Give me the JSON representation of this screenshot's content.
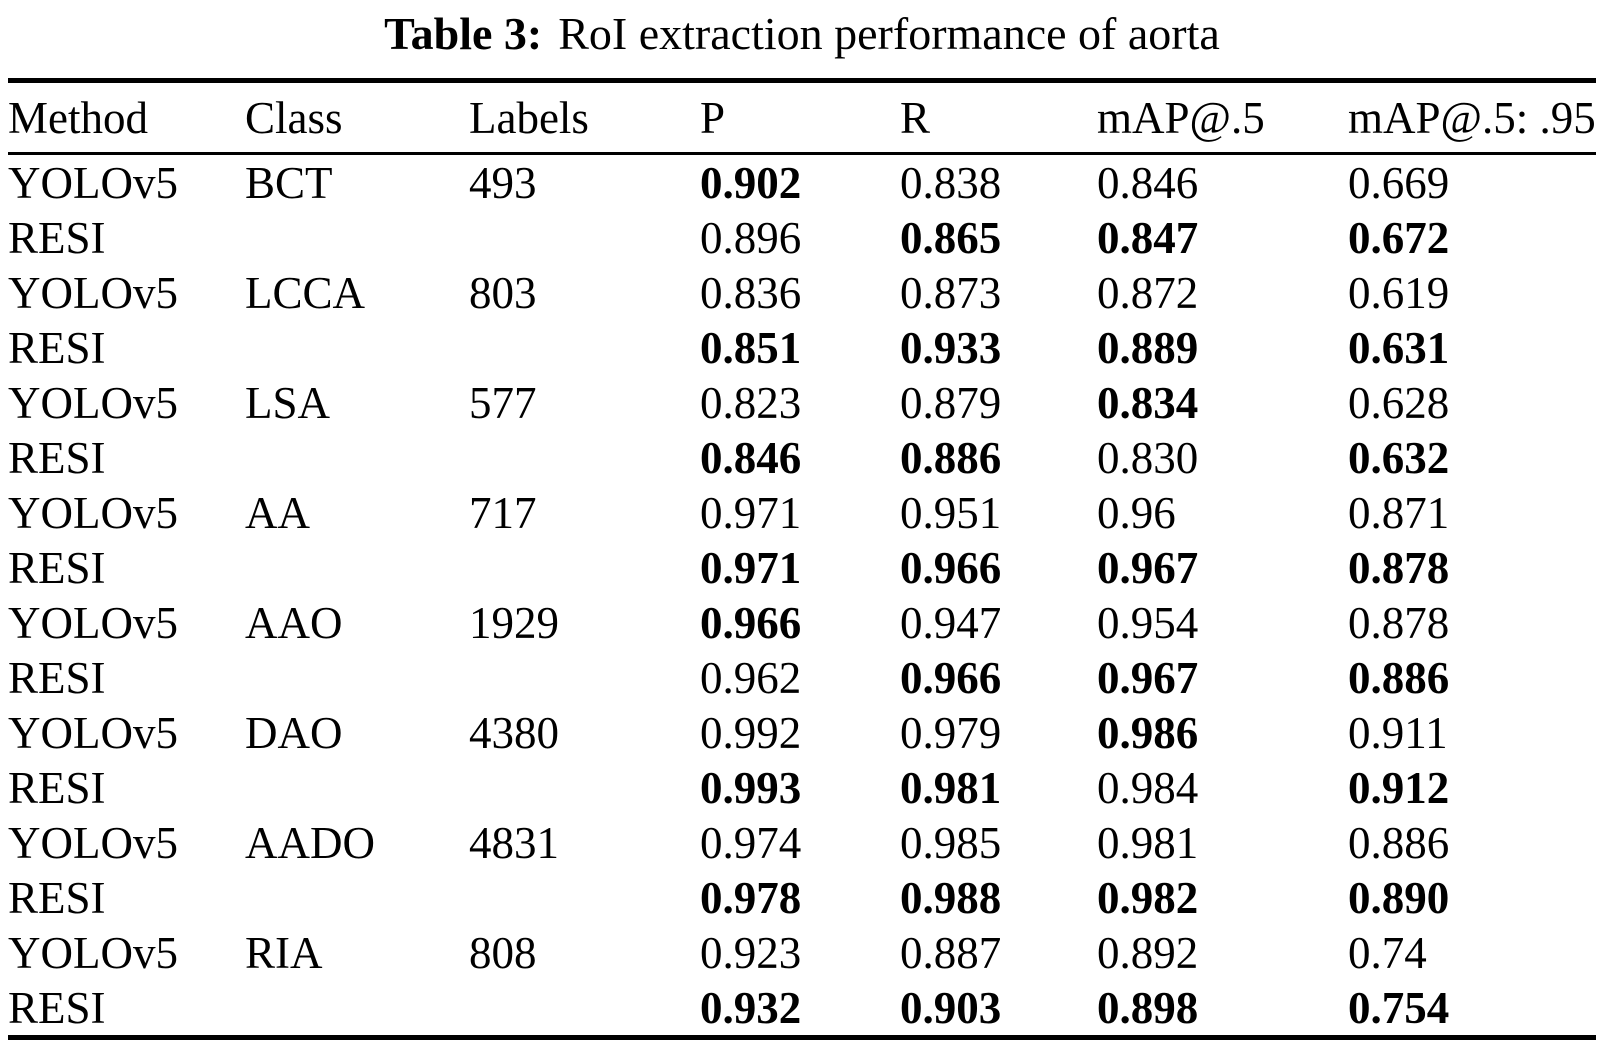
{
  "colors": {
    "text": "#000000",
    "background": "#ffffff",
    "rule": "#000000"
  },
  "caption": {
    "label": "Table 3:",
    "text": "RoI extraction performance of aorta"
  },
  "table": {
    "columns": [
      "Method",
      "Class",
      "Labels",
      "P",
      "R",
      "mAP@.5",
      "mAP@.5: .95"
    ],
    "column_keys": [
      "method",
      "class",
      "labels",
      "p",
      "r",
      "map50",
      "map50-95"
    ],
    "rows": [
      [
        {
          "v": "YOLOv5"
        },
        {
          "v": "BCT"
        },
        {
          "v": "493"
        },
        {
          "v": "0.902",
          "bold": true
        },
        {
          "v": "0.838"
        },
        {
          "v": "0.846"
        },
        {
          "v": "0.669"
        }
      ],
      [
        {
          "v": "RESI"
        },
        {
          "v": ""
        },
        {
          "v": ""
        },
        {
          "v": "0.896"
        },
        {
          "v": "0.865",
          "bold": true
        },
        {
          "v": "0.847",
          "bold": true
        },
        {
          "v": "0.672",
          "bold": true
        }
      ],
      [
        {
          "v": "YOLOv5"
        },
        {
          "v": "LCCA"
        },
        {
          "v": "803"
        },
        {
          "v": "0.836"
        },
        {
          "v": "0.873"
        },
        {
          "v": "0.872"
        },
        {
          "v": "0.619"
        }
      ],
      [
        {
          "v": "RESI"
        },
        {
          "v": ""
        },
        {
          "v": ""
        },
        {
          "v": "0.851",
          "bold": true
        },
        {
          "v": "0.933",
          "bold": true
        },
        {
          "v": "0.889",
          "bold": true
        },
        {
          "v": "0.631",
          "bold": true
        }
      ],
      [
        {
          "v": "YOLOv5"
        },
        {
          "v": "LSA"
        },
        {
          "v": "577"
        },
        {
          "v": "0.823"
        },
        {
          "v": "0.879"
        },
        {
          "v": "0.834",
          "bold": true
        },
        {
          "v": "0.628"
        }
      ],
      [
        {
          "v": "RESI"
        },
        {
          "v": ""
        },
        {
          "v": ""
        },
        {
          "v": "0.846",
          "bold": true
        },
        {
          "v": "0.886",
          "bold": true
        },
        {
          "v": "0.830"
        },
        {
          "v": "0.632",
          "bold": true
        }
      ],
      [
        {
          "v": "YOLOv5"
        },
        {
          "v": "AA"
        },
        {
          "v": "717"
        },
        {
          "v": "0.971"
        },
        {
          "v": "0.951"
        },
        {
          "v": "0.96"
        },
        {
          "v": "0.871"
        }
      ],
      [
        {
          "v": "RESI"
        },
        {
          "v": ""
        },
        {
          "v": ""
        },
        {
          "v": "0.971",
          "bold": true
        },
        {
          "v": "0.966",
          "bold": true
        },
        {
          "v": "0.967",
          "bold": true
        },
        {
          "v": "0.878",
          "bold": true
        }
      ],
      [
        {
          "v": "YOLOv5"
        },
        {
          "v": "AAO"
        },
        {
          "v": "1929"
        },
        {
          "v": "0.966",
          "bold": true
        },
        {
          "v": "0.947"
        },
        {
          "v": "0.954"
        },
        {
          "v": "0.878"
        }
      ],
      [
        {
          "v": "RESI"
        },
        {
          "v": ""
        },
        {
          "v": ""
        },
        {
          "v": "0.962"
        },
        {
          "v": "0.966",
          "bold": true
        },
        {
          "v": "0.967",
          "bold": true
        },
        {
          "v": "0.886",
          "bold": true
        }
      ],
      [
        {
          "v": "YOLOv5"
        },
        {
          "v": "DAO"
        },
        {
          "v": "4380"
        },
        {
          "v": "0.992"
        },
        {
          "v": "0.979"
        },
        {
          "v": "0.986",
          "bold": true
        },
        {
          "v": "0.911"
        }
      ],
      [
        {
          "v": "RESI"
        },
        {
          "v": ""
        },
        {
          "v": ""
        },
        {
          "v": "0.993",
          "bold": true
        },
        {
          "v": "0.981",
          "bold": true
        },
        {
          "v": "0.984"
        },
        {
          "v": "0.912",
          "bold": true
        }
      ],
      [
        {
          "v": "YOLOv5"
        },
        {
          "v": "AADO"
        },
        {
          "v": "4831"
        },
        {
          "v": "0.974"
        },
        {
          "v": "0.985"
        },
        {
          "v": "0.981"
        },
        {
          "v": "0.886"
        }
      ],
      [
        {
          "v": "RESI"
        },
        {
          "v": ""
        },
        {
          "v": ""
        },
        {
          "v": "0.978",
          "bold": true
        },
        {
          "v": "0.988",
          "bold": true
        },
        {
          "v": "0.982",
          "bold": true
        },
        {
          "v": "0.890",
          "bold": true
        }
      ],
      [
        {
          "v": "YOLOv5"
        },
        {
          "v": "RIA"
        },
        {
          "v": "808"
        },
        {
          "v": "0.923"
        },
        {
          "v": "0.887"
        },
        {
          "v": "0.892"
        },
        {
          "v": "0.74"
        }
      ],
      [
        {
          "v": "RESI"
        },
        {
          "v": ""
        },
        {
          "v": ""
        },
        {
          "v": "0.932",
          "bold": true
        },
        {
          "v": "0.903",
          "bold": true
        },
        {
          "v": "0.898",
          "bold": true
        },
        {
          "v": "0.754",
          "bold": true
        }
      ]
    ]
  }
}
